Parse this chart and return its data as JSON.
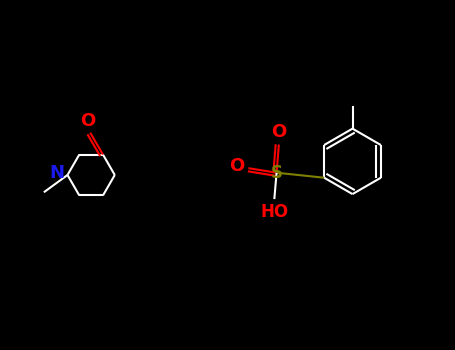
{
  "bg_color": "#000000",
  "bond_color": "#ffffff",
  "O_color": "#ff0000",
  "N_color": "#1a1aee",
  "S_color": "#808000",
  "lw": 1.5,
  "fs": 11,
  "fig_w": 4.55,
  "fig_h": 3.5,
  "dpi": 100,
  "xlim": [
    0,
    10
  ],
  "ylim": [
    0,
    7.7
  ]
}
